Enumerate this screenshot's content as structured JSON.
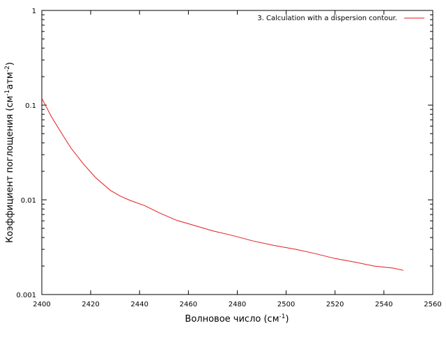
{
  "chart_data": {
    "type": "line",
    "xlabel": "Волновое число (см",
    "xlabel_sup": "-1",
    "xlabel_tail": ")",
    "ylabel": "Коэффициент поглощения (см",
    "ylabel_sup1": "-1",
    "ylabel_mid": "атм",
    "ylabel_sup2": "-2",
    "ylabel_tail": ")",
    "xlim": [
      2400,
      2560
    ],
    "ylim": [
      0.001,
      1
    ],
    "yscale": "log",
    "xticks": [
      "2400",
      "2420",
      "2440",
      "2460",
      "2480",
      "2500",
      "2520",
      "2540",
      "2560"
    ],
    "xtick_values": [
      2400,
      2420,
      2440,
      2460,
      2480,
      2500,
      2520,
      2540,
      2560
    ],
    "yticks": [
      "0.001",
      "0.01",
      "0.1",
      "1"
    ],
    "ytick_values": [
      0.001,
      0.01,
      0.1,
      1
    ],
    "legend": "top-right",
    "grid": false,
    "series": [
      {
        "name": "3. Calculation with a dispersion contour.",
        "color": "#e41a1c",
        "x": [
          2400,
          2404,
          2408,
          2412,
          2417,
          2422,
          2428,
          2432,
          2436,
          2442,
          2448,
          2455,
          2462,
          2470,
          2478,
          2486,
          2495,
          2504,
          2512,
          2520,
          2528,
          2536,
          2544,
          2548
        ],
        "y": [
          0.118,
          0.075,
          0.051,
          0.035,
          0.024,
          0.0172,
          0.0126,
          0.011,
          0.0099,
          0.0087,
          0.0073,
          0.0061,
          0.0054,
          0.0047,
          0.0042,
          0.0037,
          0.0033,
          0.003,
          0.0027,
          0.0024,
          0.0022,
          0.002,
          0.0019,
          0.0018
        ]
      }
    ]
  }
}
